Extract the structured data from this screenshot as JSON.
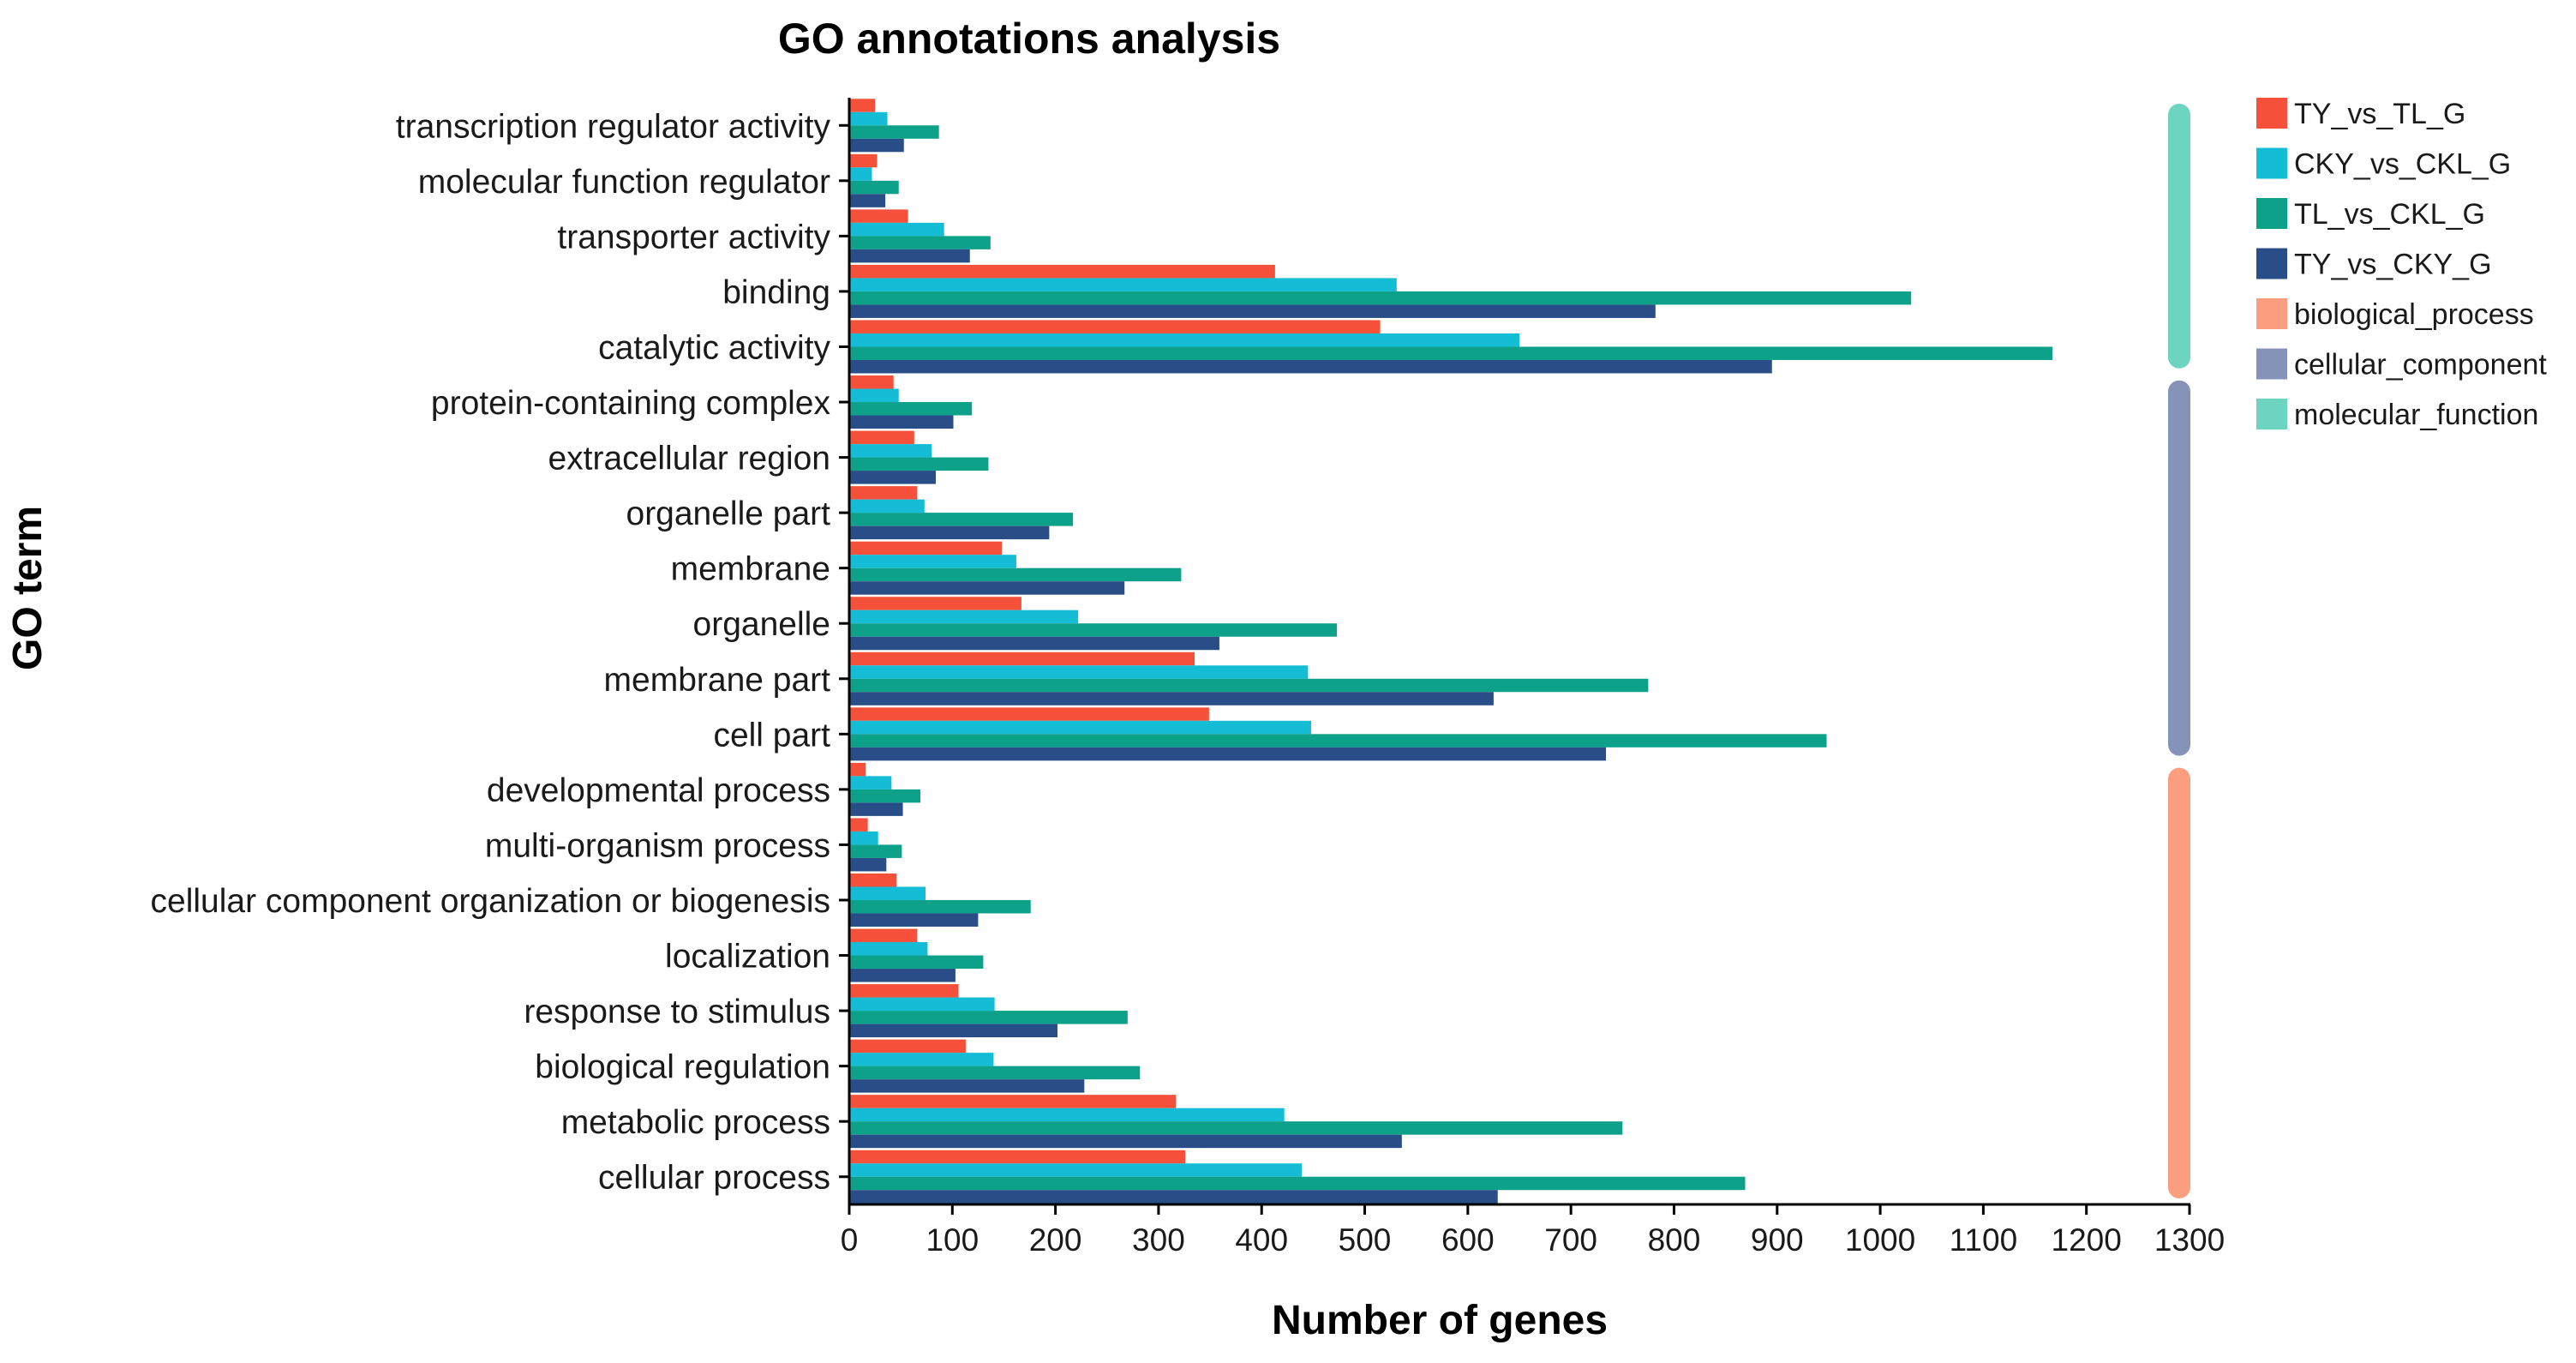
{
  "chart_data": {
    "type": "bar",
    "orientation": "horizontal",
    "title": "GO annotations analysis",
    "xlabel": "Number of genes",
    "ylabel": "GO term",
    "xlim": [
      0,
      1300
    ],
    "xticks": [
      0,
      100,
      200,
      300,
      400,
      500,
      600,
      700,
      800,
      900,
      1000,
      1100,
      1200,
      1300
    ],
    "grid": false,
    "legend_position": "right",
    "categories": [
      "transcription regulator activity",
      "molecular function regulator",
      "transporter activity",
      "binding",
      "catalytic activity",
      "protein-containing complex",
      "extracellular region",
      "organelle part",
      "membrane",
      "organelle",
      "membrane part",
      "cell part",
      "developmental process",
      "multi-organism process",
      "cellular component organization or biogenesis",
      "localization",
      "response to stimulus",
      "biological regulation",
      "metabolic process",
      "cellular process"
    ],
    "series": [
      {
        "name": "TY_vs_TL_G",
        "color": "#F5503A",
        "values": [
          25,
          27,
          57,
          413,
          515,
          43,
          63,
          66,
          148,
          167,
          335,
          349,
          16,
          18,
          46,
          66,
          106,
          113,
          317,
          326
        ]
      },
      {
        "name": "CKY_vs_CKL_G",
        "color": "#14BCD6",
        "values": [
          37,
          22,
          92,
          531,
          650,
          48,
          80,
          73,
          162,
          222,
          445,
          448,
          41,
          28,
          74,
          76,
          141,
          140,
          422,
          439
        ]
      },
      {
        "name": "TL_vs_CKL_G",
        "color": "#0EA18A",
        "values": [
          87,
          48,
          137,
          1030,
          1167,
          119,
          135,
          217,
          322,
          473,
          775,
          948,
          69,
          51,
          176,
          130,
          270,
          282,
          750,
          869
        ]
      },
      {
        "name": "TY_vs_CKY_G",
        "color": "#294E87",
        "values": [
          53,
          35,
          117,
          782,
          895,
          101,
          84,
          194,
          267,
          359,
          625,
          734,
          52,
          36,
          125,
          103,
          202,
          228,
          536,
          629
        ]
      }
    ],
    "groups": [
      {
        "name": "molecular_function",
        "color": "#6DD4C2",
        "categories_from": 0,
        "categories_to": 4
      },
      {
        "name": "cellular_component",
        "color": "#8593B8",
        "categories_from": 5,
        "categories_to": 11
      },
      {
        "name": "biological_process",
        "color": "#FB9E80",
        "categories_from": 12,
        "categories_to": 19
      }
    ],
    "legend_entries": [
      {
        "label": "TY_vs_TL_G",
        "color": "#F5503A"
      },
      {
        "label": "CKY_vs_CKL_G",
        "color": "#14BCD6"
      },
      {
        "label": "TL_vs_CKL_G",
        "color": "#0EA18A"
      },
      {
        "label": "TY_vs_CKY_G",
        "color": "#294E87"
      },
      {
        "label": "biological_process",
        "color": "#FB9E80"
      },
      {
        "label": "cellular_component",
        "color": "#8593B8"
      },
      {
        "label": "molecular_function",
        "color": "#6DD4C2"
      }
    ]
  }
}
